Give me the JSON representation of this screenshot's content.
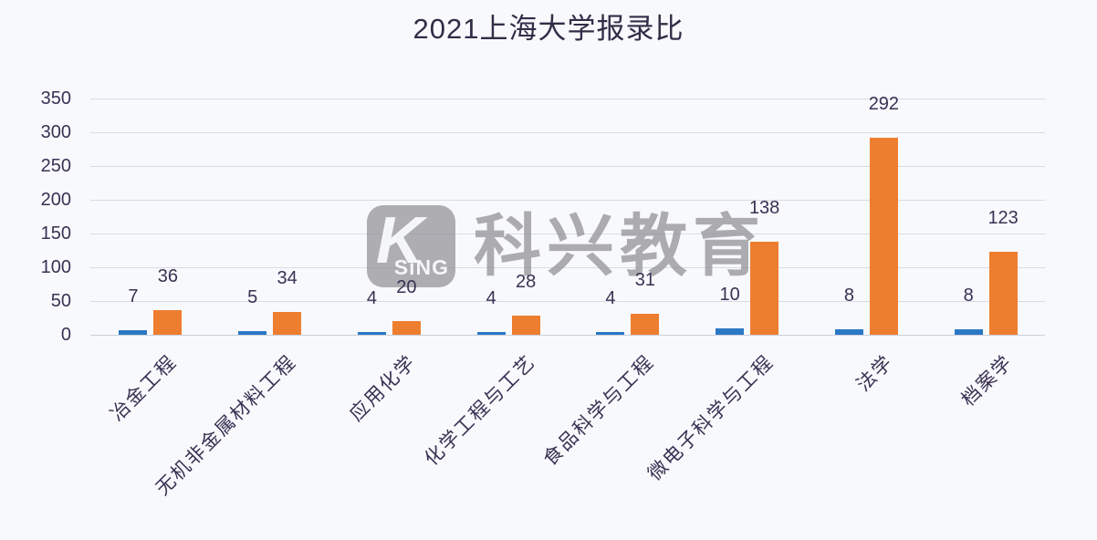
{
  "title": "2021上海大学报录比",
  "watermark": {
    "logo_k": "K",
    "logo_sing": "SiNG",
    "text": "科兴教育"
  },
  "colors": {
    "blue": "#2b78c5",
    "orange": "#ee7e2f",
    "text": "#3b3153",
    "gridline": "#d8dce4",
    "background": "#f7f9fc",
    "watermark_gray": "#949499"
  },
  "chart_data": {
    "type": "bar",
    "title": "2021上海大学报录比",
    "categories": [
      "冶金工程",
      "无机非金属材料工程",
      "应用化学",
      "化学工程与工艺",
      "食品科学与工程",
      "微电子科学与工程",
      "法学",
      "档案学"
    ],
    "series": [
      {
        "name": "blue",
        "color": "#2b78c5",
        "values": [
          7,
          5,
          4,
          4,
          4,
          10,
          8,
          8
        ]
      },
      {
        "name": "orange",
        "color": "#ee7e2f",
        "values": [
          36,
          34,
          20,
          28,
          31,
          138,
          292,
          123
        ]
      }
    ],
    "xlabel": "",
    "ylabel": "",
    "ylim": [
      0,
      350
    ],
    "yticks": [
      0,
      50,
      100,
      150,
      200,
      250,
      300,
      350
    ],
    "grid": true,
    "legend": "none",
    "data_labels": true
  }
}
